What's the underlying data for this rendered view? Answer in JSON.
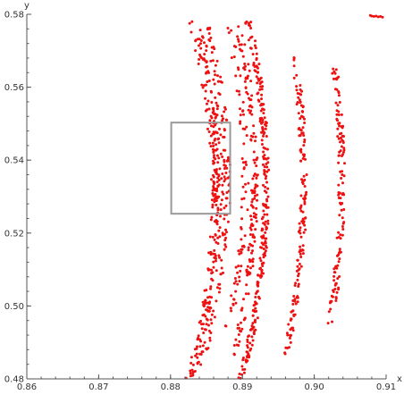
{
  "chart_data": {
    "type": "scatter",
    "title": "",
    "xlabel": "x",
    "ylabel": "y",
    "xlim": [
      0.86,
      0.91
    ],
    "ylim": [
      0.48,
      0.58
    ],
    "xticks": [
      0.86,
      0.87,
      0.88,
      0.89,
      0.9,
      0.91
    ],
    "xtick_labels": [
      "0.86",
      "0.87",
      "0.88",
      "0.89",
      "0.90",
      "0.91"
    ],
    "yticks": [
      0.48,
      0.5,
      0.52,
      0.54,
      0.56,
      0.58
    ],
    "ytick_labels": [
      "0.48",
      "0.50",
      "0.52",
      "0.54",
      "0.56",
      "0.58"
    ],
    "grid": false,
    "point_color": "#ee1111",
    "frame_color": "#555555",
    "highlight_box": {
      "x": [
        0.8801,
        0.8883
      ],
      "y": [
        0.5253,
        0.5503
      ],
      "color": "#999999"
    },
    "bands": [
      {
        "a": 0.8861,
        "b": 0.53,
        "c": 1.4,
        "y_range": [
          0.48,
          0.578
        ],
        "n": 130
      },
      {
        "a": 0.8869,
        "b": 0.532,
        "c": 1.44,
        "y_range": [
          0.48,
          0.578
        ],
        "n": 110
      },
      {
        "a": 0.8879,
        "b": 0.534,
        "c": 1.5,
        "y_range": [
          0.482,
          0.578
        ],
        "n": 110
      },
      {
        "a": 0.8933,
        "b": 0.533,
        "c": 1.22,
        "y_range": [
          0.48,
          0.578
        ],
        "n": 260
      },
      {
        "a": 0.8917,
        "b": 0.534,
        "c": 1.23,
        "y_range": [
          0.486,
          0.577
        ],
        "n": 150
      },
      {
        "a": 0.8904,
        "b": 0.536,
        "c": 1.4,
        "y_range": [
          0.494,
          0.577
        ],
        "n": 80
      },
      {
        "a": 0.8985,
        "b": 0.534,
        "c": 1.1,
        "y_range": [
          0.484,
          0.57
        ],
        "n": 160
      },
      {
        "a": 0.9038,
        "b": 0.534,
        "c": 1.04,
        "y_range": [
          0.495,
          0.565
        ],
        "n": 130
      },
      {
        "a": 0.8864,
        "b": 0.537,
        "c": 2.5,
        "y_range": [
          0.526,
          0.556
        ],
        "n": 55
      }
    ],
    "extra_points": [
      {
        "x": 0.908,
        "y": 0.5795
      },
      {
        "x": 0.9083,
        "y": 0.5794
      },
      {
        "x": 0.9086,
        "y": 0.5795
      },
      {
        "x": 0.9089,
        "y": 0.5793
      },
      {
        "x": 0.9092,
        "y": 0.5794
      },
      {
        "x": 0.9095,
        "y": 0.5792
      },
      {
        "x": 0.9078,
        "y": 0.5797
      }
    ]
  }
}
